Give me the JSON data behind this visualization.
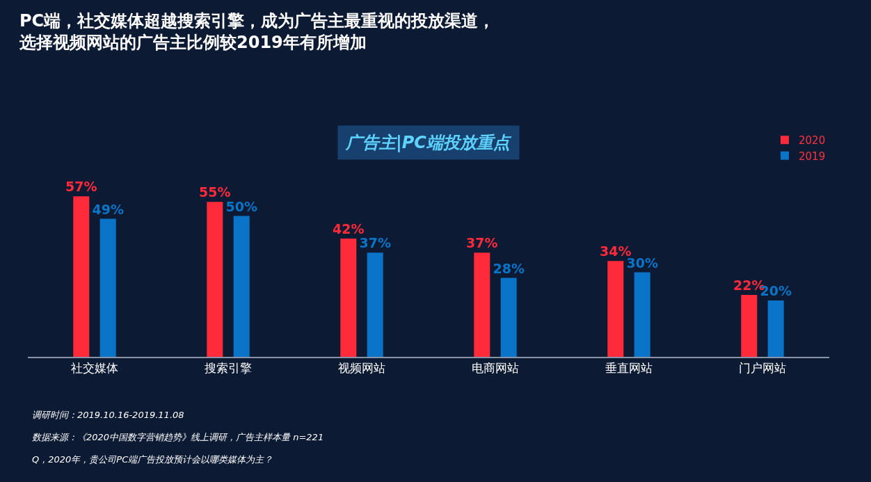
{
  "chart_data": {
    "type": "bar",
    "title": "PC端，社交媒体超越搜索引擎，成为广告主最重视的投放渠道，选择视频网站的广告主比例较2019年有所增加",
    "subtitle": "广告主|PC端投放重点",
    "categories": [
      "社交媒体",
      "搜索引擎",
      "视频网站",
      "电商网站",
      "垂直网站",
      "门户网站"
    ],
    "series": [
      {
        "name": "2020",
        "color": "#ff2a3a",
        "values": [
          57,
          55,
          42,
          37,
          34,
          22
        ],
        "value_labels": [
          "57%",
          "55%",
          "42%",
          "37%",
          "34%",
          "22%"
        ]
      },
      {
        "name": "2019",
        "color": "#0a74c8",
        "values": [
          49,
          50,
          37,
          28,
          30,
          20
        ],
        "value_labels": [
          "49%",
          "50%",
          "37%",
          "28%",
          "30%",
          "20%"
        ]
      }
    ],
    "legend": "top right",
    "grid": false,
    "annotations": [
      "调研时间：2019.10.16-2019.11.08",
      "数据来源：《2020中国数字营销趋势》线上调研，广告主样本量 n=221",
      "Q，2020年，贵公司PC端广告投放预计会以哪类媒体为主？"
    ]
  }
}
